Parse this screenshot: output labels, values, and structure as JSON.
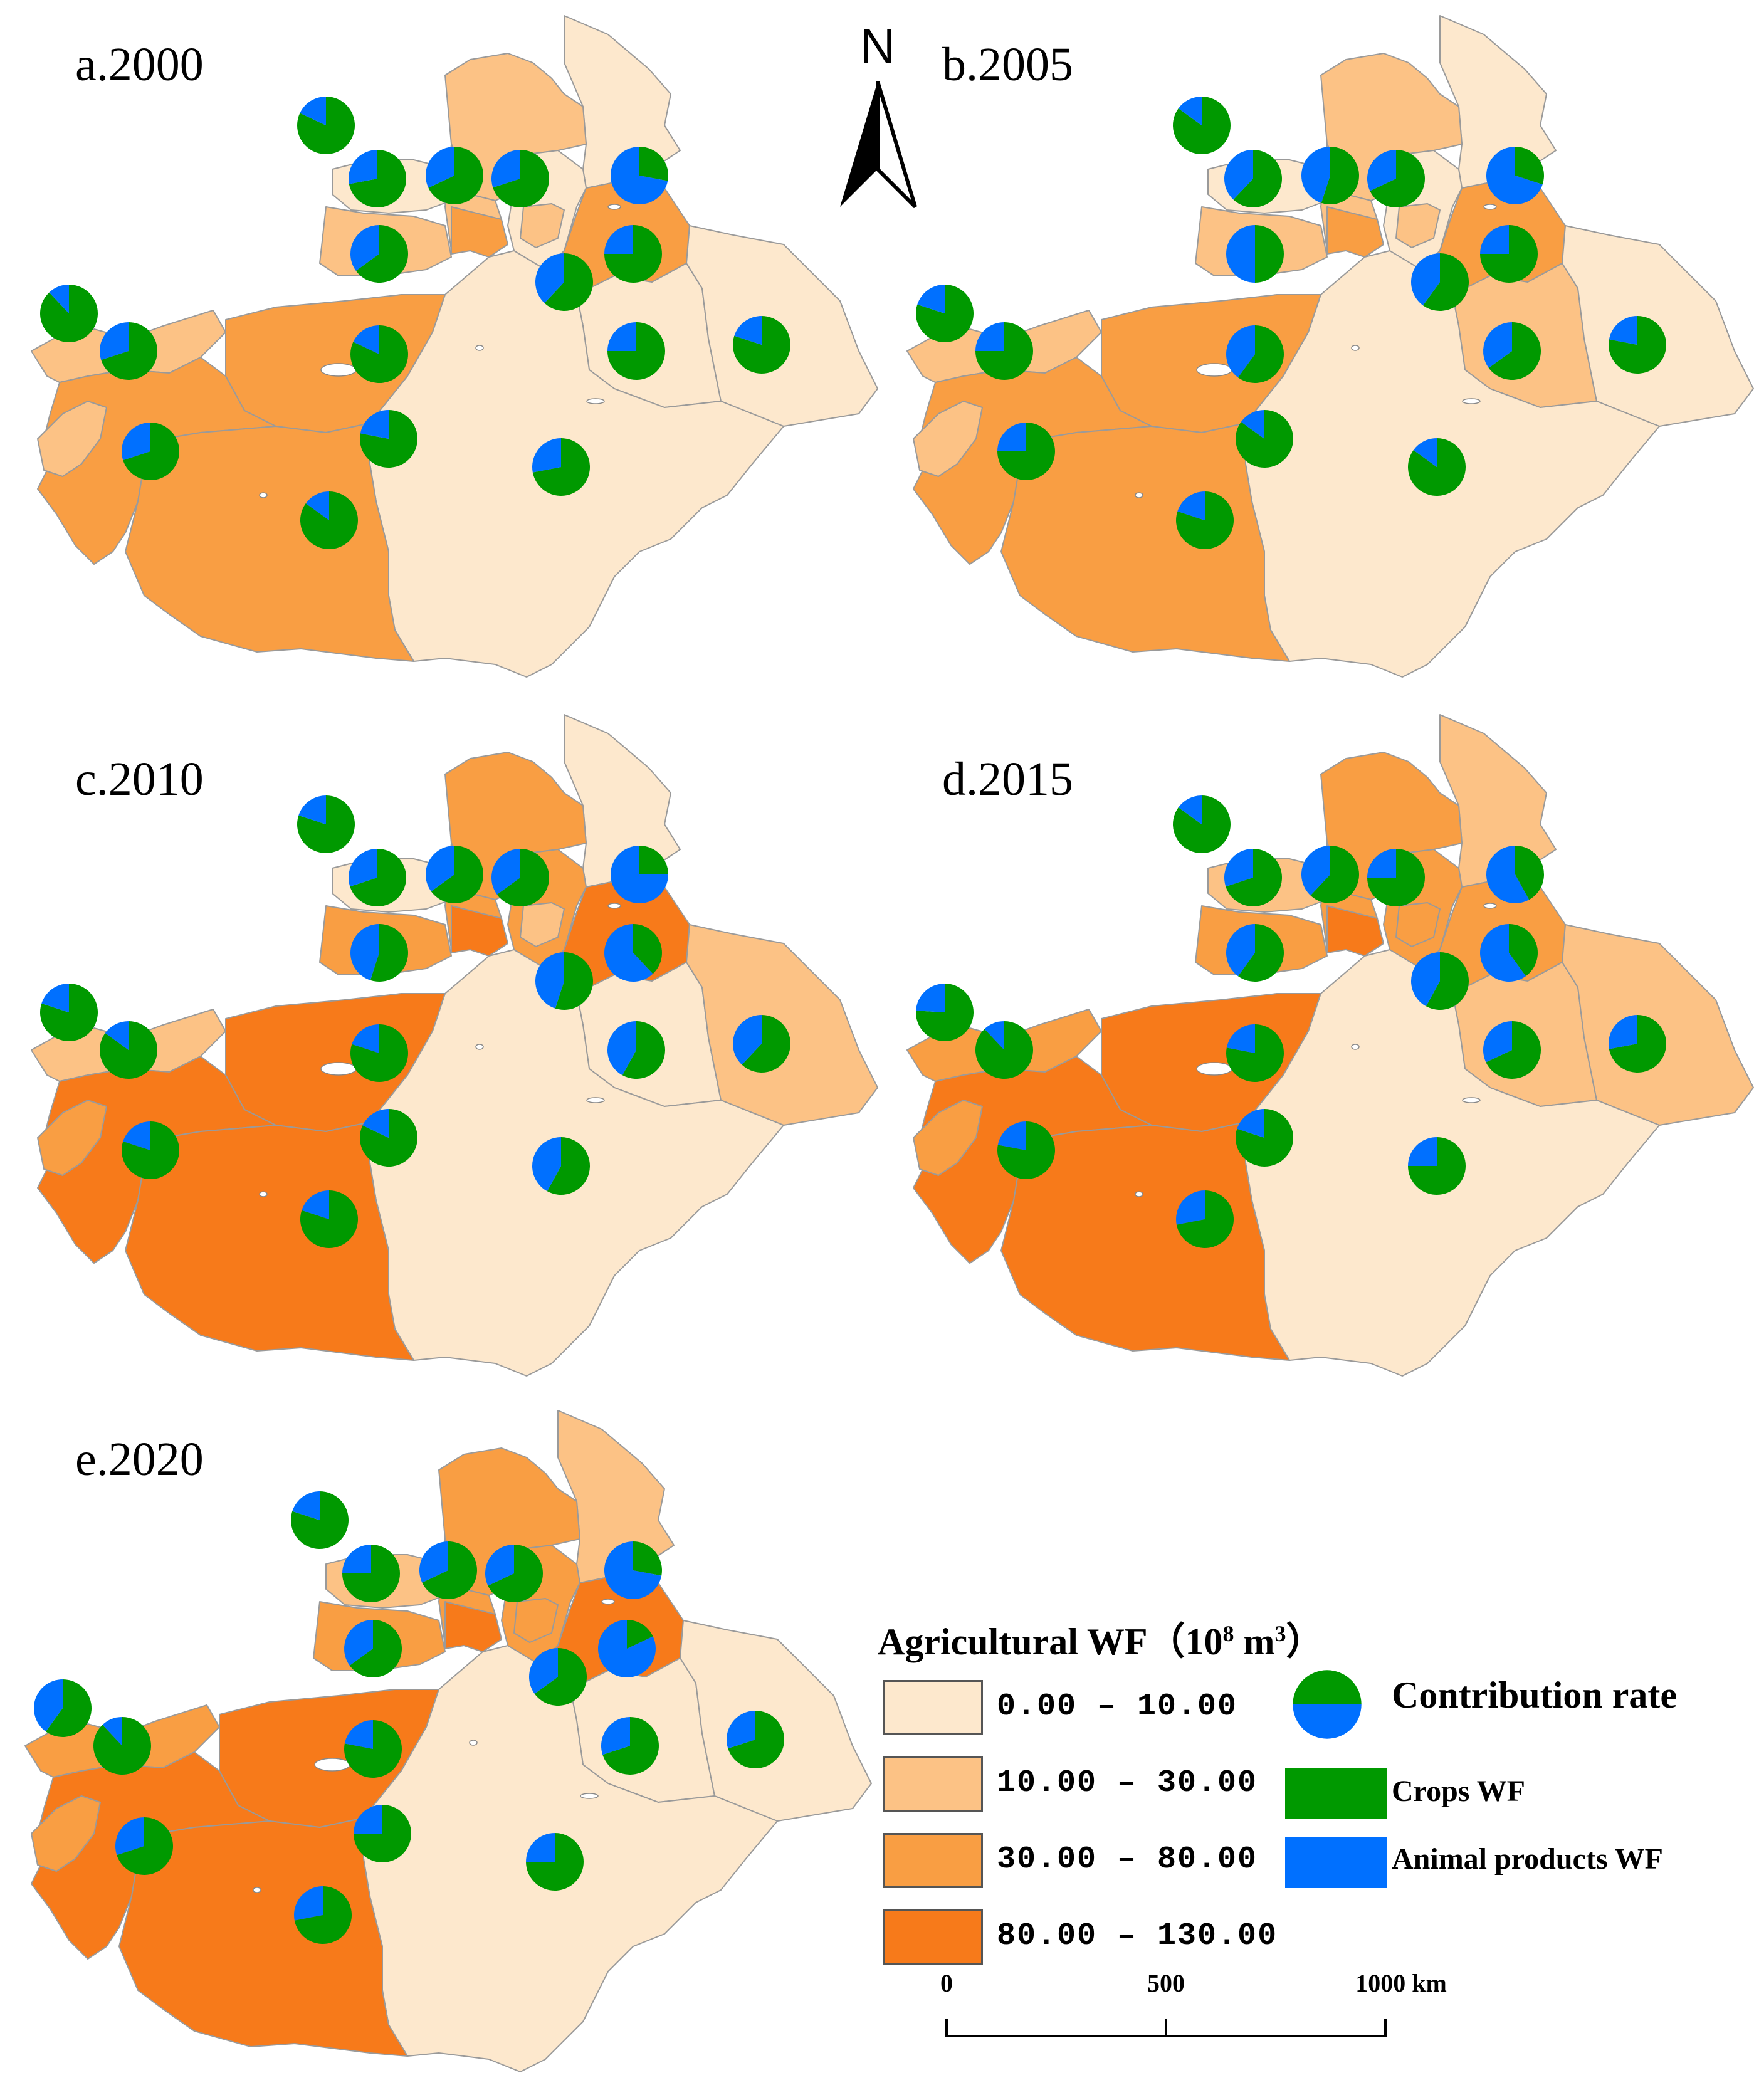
{
  "panels": [
    {
      "id": "a",
      "title": "a.2000",
      "classes": [
        1,
        2,
        2,
        1,
        2,
        3,
        1,
        3,
        1,
        1,
        2,
        3,
        1,
        3,
        3,
        2,
        2
      ],
      "pies": [
        72,
        68,
        70,
        28,
        65,
        62,
        75,
        75,
        80,
        70,
        82,
        72,
        70,
        85,
        82,
        78,
        88
      ]
    },
    {
      "id": "b",
      "title": "b.2005",
      "classes": [
        1,
        2,
        2,
        1,
        2,
        3,
        1,
        3,
        2,
        1,
        2,
        3,
        1,
        3,
        3,
        2,
        2
      ],
      "pies": [
        62,
        55,
        68,
        30,
        50,
        60,
        75,
        65,
        78,
        75,
        60,
        85,
        75,
        80,
        85,
        85,
        80
      ]
    },
    {
      "id": "c",
      "title": "c.2010",
      "classes": [
        1,
        3,
        3,
        1,
        3,
        4,
        3,
        4,
        1,
        2,
        2,
        4,
        1,
        4,
        4,
        2,
        3
      ],
      "pies": [
        70,
        65,
        65,
        25,
        55,
        55,
        38,
        58,
        62,
        85,
        80,
        58,
        80,
        80,
        80,
        82,
        80
      ]
    },
    {
      "id": "d",
      "title": "d.2015",
      "classes": [
        2,
        3,
        3,
        2,
        3,
        4,
        3,
        3,
        2,
        2,
        3,
        4,
        1,
        4,
        4,
        3,
        3
      ],
      "pies": [
        70,
        62,
        75,
        42,
        60,
        58,
        40,
        68,
        72,
        88,
        78,
        75,
        78,
        72,
        85,
        80,
        76
      ]
    },
    {
      "id": "e",
      "title": "e.2020",
      "classes": [
        2,
        3,
        3,
        2,
        3,
        4,
        3,
        4,
        1,
        1,
        3,
        4,
        1,
        4,
        4,
        3,
        3
      ],
      "pies": [
        75,
        68,
        68,
        28,
        65,
        65,
        18,
        70,
        70,
        88,
        78,
        75,
        70,
        72,
        80,
        75,
        60
      ]
    }
  ],
  "class_colors": {
    "1": "#fde8cd",
    "2": "#fcc285",
    "3": "#f99e43",
    "4": "#f77a1a"
  },
  "compass": {
    "label": "N"
  },
  "legend": {
    "title_prefix": "Agricultural WF（10",
    "title_sup1": "8",
    "title_mid": " m",
    "title_sup2": "3",
    "title_suffix": "）",
    "classes": [
      {
        "range": "0.00 – 10.00",
        "color": "#fde8cd"
      },
      {
        "range": "10.00 – 30.00",
        "color": "#fcc285"
      },
      {
        "range": "30.00 – 80.00",
        "color": "#f99e43"
      },
      {
        "range": "80.00 – 130.00",
        "color": "#f77a1a"
      }
    ],
    "pie_label": "Contribution rate",
    "series": [
      {
        "name": "Crops WF",
        "color": "#009900"
      },
      {
        "name": "Animal products WF",
        "color": "#0070ff"
      }
    ]
  },
  "scale_bar": {
    "ticks": [
      "0",
      "500",
      "1000 km"
    ]
  }
}
